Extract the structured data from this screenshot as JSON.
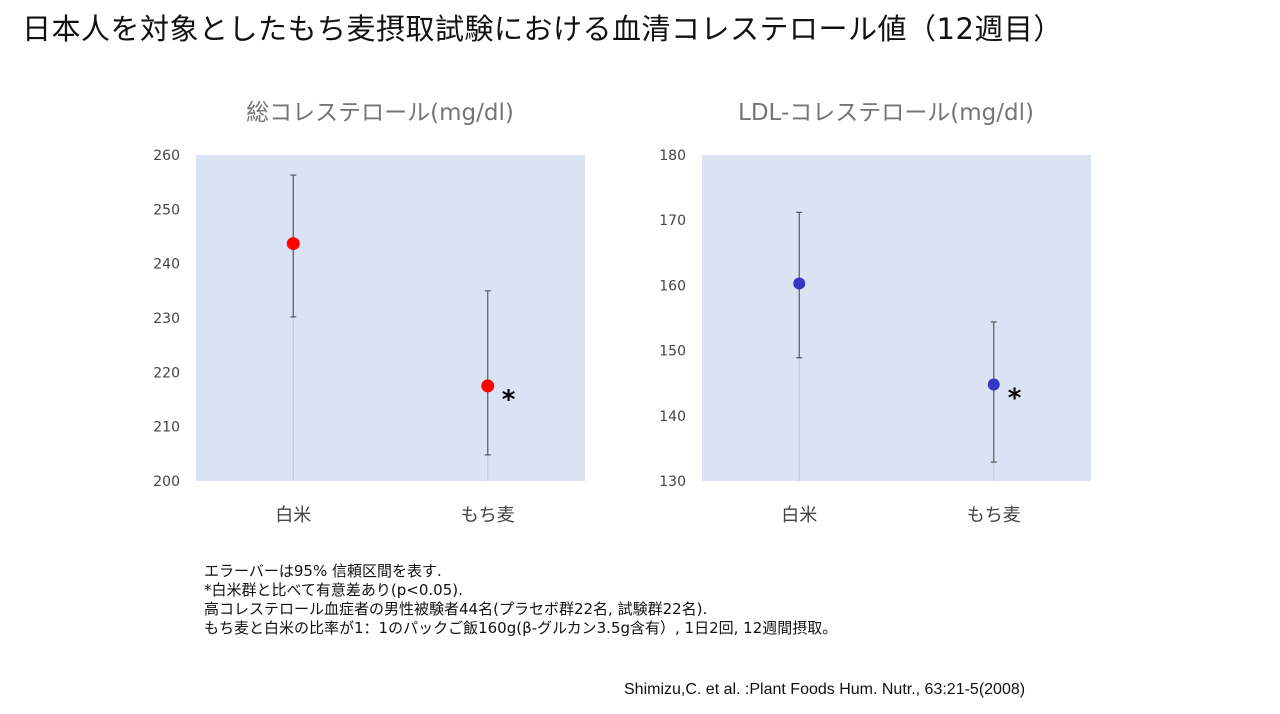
{
  "page_title": "日本人を対象としたもち麦摂取試験における血清コレステロール値（12週目）",
  "notes": [
    "エラーバーは95% 信頼区間を表す.",
    "*白米群と比べて有意差あり(p<0.05).",
    "高コレステロール血症者の男性被験者44名(プラセボ群22名, 試験群22名).",
    "もち麦と白米の比率が1：1のパックご飯160g(β-グルカン3.5g含有）, 1日2回, 12週間摂取。"
  ],
  "citation": "Shimizu,C. et al. :Plant Foods Hum. Nutr., 63:21-5(2008)",
  "chart_data": [
    {
      "type": "scatter",
      "title": "総コレステロール(mg/dl)",
      "categories": [
        "白米",
        "もち麦"
      ],
      "values": [
        243.7,
        217.5
      ],
      "error_low": [
        230.2,
        204.8
      ],
      "error_high": [
        256.3,
        235.0
      ],
      "significance": [
        "",
        "*"
      ],
      "ylim": [
        200,
        260
      ],
      "yticks": [
        200,
        210,
        220,
        230,
        240,
        250,
        260
      ],
      "color": "#ff0000",
      "plot_background": "#dae3f3",
      "grid": false
    },
    {
      "type": "scatter",
      "title": "LDL-コレステロール(mg/dl)",
      "categories": [
        "白米",
        "もち麦"
      ],
      "values": [
        160.3,
        144.8
      ],
      "error_low": [
        148.9,
        132.9
      ],
      "error_high": [
        171.2,
        154.4
      ],
      "significance": [
        "",
        "*"
      ],
      "ylim": [
        130,
        180
      ],
      "yticks": [
        130,
        140,
        150,
        160,
        170,
        180
      ],
      "color": "#3535c8",
      "plot_background": "#dae3f3",
      "grid": false
    }
  ]
}
